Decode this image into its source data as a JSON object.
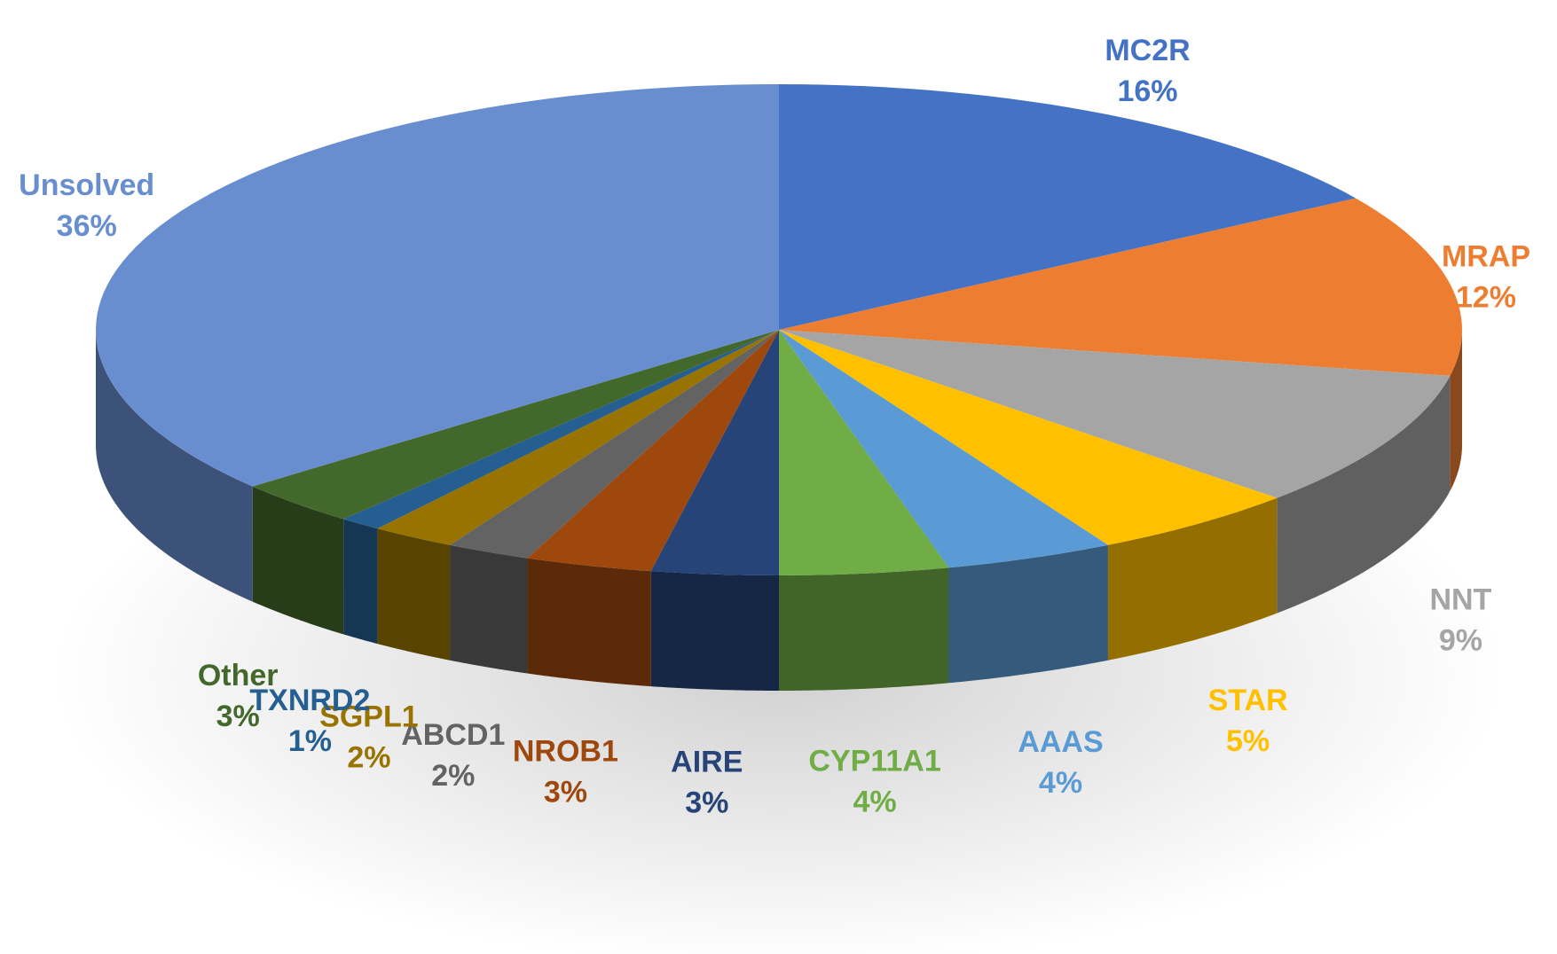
{
  "chart_data": {
    "type": "pie",
    "title": "",
    "slices": [
      {
        "label": "MC2R",
        "pct_label": "16%",
        "value": 16,
        "color": "#4472C4"
      },
      {
        "label": "MRAP",
        "pct_label": "12%",
        "value": 12,
        "color": "#ED7D31"
      },
      {
        "label": "NNT",
        "pct_label": "9%",
        "value": 9,
        "color": "#A5A5A5"
      },
      {
        "label": "STAR",
        "pct_label": "5%",
        "value": 5,
        "color": "#FFC000"
      },
      {
        "label": "AAAS",
        "pct_label": "4%",
        "value": 4,
        "color": "#5B9BD5"
      },
      {
        "label": "CYP11A1",
        "pct_label": "4%",
        "value": 4,
        "color": "#70AD47"
      },
      {
        "label": "AIRE",
        "pct_label": "3%",
        "value": 3,
        "color": "#264478"
      },
      {
        "label": "NROB1",
        "pct_label": "3%",
        "value": 3,
        "color": "#9E480E"
      },
      {
        "label": "ABCD1",
        "pct_label": "2%",
        "value": 2,
        "color": "#636363"
      },
      {
        "label": "SGPL1",
        "pct_label": "2%",
        "value": 2,
        "color": "#997300"
      },
      {
        "label": "TXNRD2",
        "pct_label": "1%",
        "value": 1,
        "color": "#255E91"
      },
      {
        "label": "Other",
        "pct_label": "3%",
        "value": 3,
        "color": "#43682B"
      },
      {
        "label": "Unsolved",
        "pct_label": "36%",
        "value": 36,
        "color": "#698ED0"
      }
    ],
    "label_colors": {
      "MC2R": "#4472C4",
      "MRAP": "#ED7D31",
      "NNT": "#A5A5A5",
      "STAR": "#FFC000",
      "AAAS": "#5B9BD5",
      "CYP11A1": "#70AD47",
      "AIRE": "#264478",
      "NROB1": "#9E480E",
      "ABCD1": "#636363",
      "SGPL1": "#997300",
      "TXNRD2": "#255E91",
      "Other": "#43682B",
      "Unsolved": "#698ED0"
    },
    "legend": "none",
    "style": "3d-pie"
  }
}
